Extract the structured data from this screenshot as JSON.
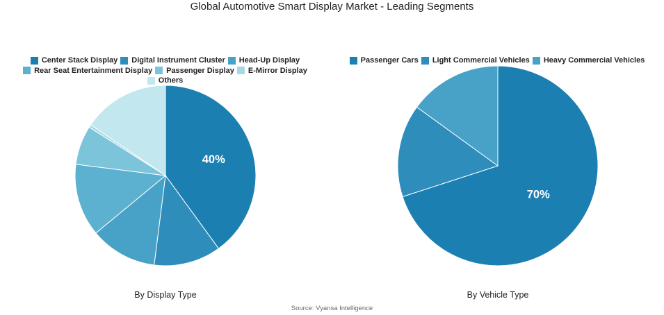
{
  "title": "Global Automotive Smart Display Market - Leading Segments",
  "source": "Source: Vyansa Intelligence",
  "chart_data": [
    {
      "type": "pie",
      "subtitle": "By Display Type",
      "labels": [
        "Center Stack Display",
        "Digital Instrument Cluster",
        "Head-Up Display",
        "Rear Seat Entertainment Display",
        "Passenger Display",
        "E-Mirror Display",
        "Others"
      ],
      "values": [
        40,
        12,
        12,
        13,
        7,
        0.5,
        15.5
      ],
      "colors": [
        "#1b80b1",
        "#2f8dbb",
        "#48a2c7",
        "#5db1d0",
        "#7cc4da",
        "#a6d9e7",
        "#c2e7ef"
      ],
      "data_labels": [
        "40%",
        "",
        "",
        "",
        "",
        "",
        ""
      ],
      "legend": "top"
    },
    {
      "type": "pie",
      "subtitle": "By Vehicle Type",
      "labels": [
        "Passenger Cars",
        "Light Commercial Vehicles",
        "Heavy Commercial Vehicles"
      ],
      "values": [
        70,
        15,
        15
      ],
      "colors": [
        "#1b80b1",
        "#2f8dbb",
        "#48a2c7"
      ],
      "data_labels": [
        "70%",
        "",
        ""
      ],
      "legend": "top"
    }
  ]
}
